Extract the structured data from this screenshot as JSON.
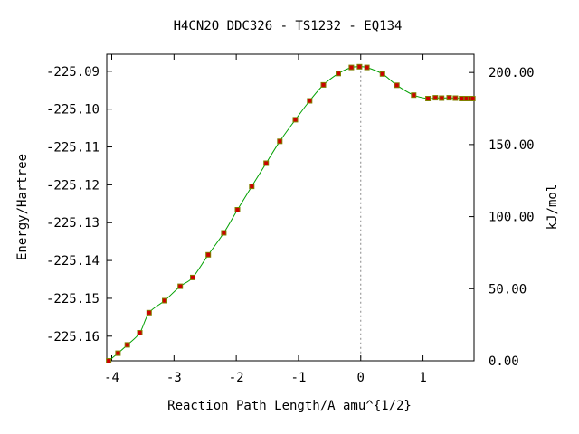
{
  "chart_data": {
    "type": "line",
    "title": "H4CN2O   DDC326 - TS1232 - EQ134",
    "xlabel": "Reaction Path Length/A amu^{1/2}",
    "ylabel": "Energy/Hartree",
    "y2label": "kJ/mol",
    "xlim": [
      -4.08,
      1.82
    ],
    "ylim": [
      -225.1665,
      -225.0855
    ],
    "y2lim": [
      0.0,
      212.65
    ],
    "x_ticks": [
      -4,
      -3,
      -2,
      -1,
      0,
      1
    ],
    "x_tick_labels": [
      "-4",
      "-3",
      "-2",
      "-1",
      "0",
      "1"
    ],
    "y_ticks": [
      -225.09,
      -225.1,
      -225.11,
      -225.12,
      -225.13,
      -225.14,
      -225.15,
      -225.16
    ],
    "y_tick_labels": [
      "-225.09",
      "-225.10",
      "-225.11",
      "-225.12",
      "-225.13",
      "-225.14",
      "-225.15",
      "-225.16"
    ],
    "y2_ticks": [
      200,
      150,
      100,
      50,
      0
    ],
    "y2_tick_labels": [
      "200.00",
      "150.00",
      "100.00",
      "50.00",
      "0.00"
    ],
    "grid": false,
    "ts_marker_x": 0.0,
    "colors": {
      "line": "#00a000",
      "marker": "#cc0000",
      "marker_edge": "#808000",
      "ts_line": "#888888"
    },
    "series": [
      {
        "x": [
          -4.05,
          -3.9,
          -3.75,
          -3.55,
          -3.4,
          -3.15,
          -2.9,
          -2.7,
          -2.45,
          -2.2,
          -1.98,
          -1.75,
          -1.52,
          -1.3,
          -1.05,
          -0.82,
          -0.6,
          -0.36,
          -0.15,
          -0.02,
          0.1,
          0.35,
          0.58,
          0.85,
          1.08,
          1.2,
          1.3,
          1.42,
          1.52,
          1.62,
          1.7,
          1.76,
          1.8
        ],
        "y": [
          -225.1665,
          -225.1645,
          -225.1623,
          -225.1591,
          -225.1538,
          -225.1506,
          -225.1468,
          -225.1445,
          -225.1385,
          -225.1327,
          -225.1266,
          -225.1204,
          -225.1143,
          -225.1085,
          -225.1028,
          -225.0978,
          -225.0936,
          -225.0906,
          -225.089,
          -225.0888,
          -225.089,
          -225.0907,
          -225.0937,
          -225.0963,
          -225.0972,
          -225.097,
          -225.0971,
          -225.097,
          -225.0971,
          -225.0972,
          -225.0972,
          -225.0972,
          -225.0972
        ]
      }
    ]
  }
}
